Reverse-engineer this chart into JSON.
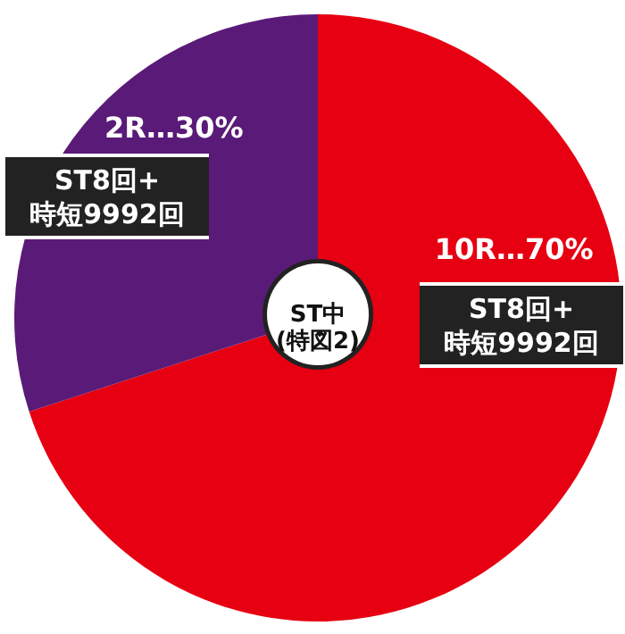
{
  "chart_data": {
    "type": "pie",
    "categories": [
      "10R",
      "2R"
    ],
    "values": [
      70,
      30
    ],
    "colors": [
      "#e60012",
      "#5a1a78"
    ],
    "value_labels": [
      "…70%",
      "…30%"
    ],
    "annotations": [
      "ST中\n(特図2)",
      "ST8回+\n時短9992回",
      "ST8回+\n時短9992回"
    ]
  }
}
